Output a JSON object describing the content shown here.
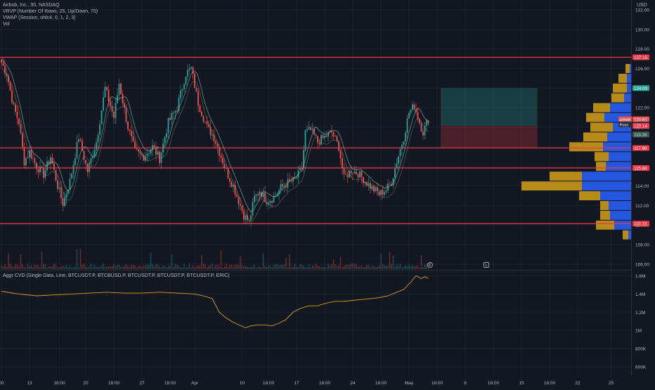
{
  "header": {
    "title": "Airbnb, Inc., 30, NASDAQ",
    "indicators": [
      "VRVP (Number Of Rows, 25, Up/Down, 70)",
      "VWAP (Session, ohlc4, 0, 1, 2, 3)",
      "Vol"
    ],
    "currency": "USD"
  },
  "colors": {
    "background": "#131722",
    "up": "#26a69a",
    "down": "#ef5350",
    "hline": "#f23645",
    "profile_up": "#2962ff",
    "profile_down": "#d4a017",
    "cvd": "#d4a017",
    "vwap": "#7ecbb5"
  },
  "chart_data": [
    {
      "type": "candlestick",
      "title": "Airbnb, Inc., 30, NASDAQ",
      "ylim": [
        105.5,
        133
      ],
      "yticks": [
        106,
        108,
        110,
        112,
        114,
        116,
        118,
        120,
        122,
        124,
        126,
        128,
        130,
        132
      ],
      "xticks": [
        "00",
        "13",
        "18:00",
        "20",
        "18:00",
        "27",
        "18:00",
        "Apr",
        "10",
        "18:00",
        "17",
        "18:00",
        "24",
        "18:00",
        "May",
        "18:00",
        "8",
        "18:00",
        "15",
        "18:00",
        "22",
        "25"
      ],
      "xtick_positions": [
        0,
        16,
        33,
        48,
        64,
        80,
        96,
        110,
        137,
        152,
        168,
        184,
        200,
        216,
        232,
        248,
        264,
        280,
        296,
        312,
        328,
        347
      ],
      "price_path_anchors": [
        [
          0,
          126.6
        ],
        [
          3,
          125.5
        ],
        [
          7,
          122.0
        ],
        [
          10,
          120.5
        ],
        [
          13,
          116.5
        ],
        [
          16,
          117.5
        ],
        [
          20,
          116.0
        ],
        [
          24,
          115.2
        ],
        [
          28,
          117.0
        ],
        [
          32,
          114.0
        ],
        [
          35,
          112.2
        ],
        [
          39,
          114.5
        ],
        [
          44,
          119.0
        ],
        [
          49,
          115.5
        ],
        [
          54,
          118.5
        ],
        [
          59,
          124.0
        ],
        [
          64,
          121.0
        ],
        [
          67,
          124.5
        ],
        [
          72,
          120.0
        ],
        [
          76,
          117.5
        ],
        [
          81,
          117.0
        ],
        [
          86,
          118.0
        ],
        [
          90,
          116.8
        ],
        [
          95,
          120.5
        ],
        [
          100,
          122.0
        ],
        [
          105,
          125.5
        ],
        [
          108,
          126.0
        ],
        [
          112,
          122.5
        ],
        [
          117,
          120.0
        ],
        [
          121,
          119.0
        ],
        [
          125,
          117.0
        ],
        [
          128,
          115.5
        ],
        [
          132,
          114.0
        ],
        [
          135,
          112.5
        ],
        [
          138,
          111.0
        ],
        [
          141,
          110.3
        ],
        [
          144,
          112.8
        ],
        [
          147,
          113.5
        ],
        [
          151,
          112.5
        ],
        [
          155,
          112.8
        ],
        [
          159,
          113.8
        ],
        [
          163,
          114.3
        ],
        [
          167,
          114.6
        ],
        [
          171,
          115.8
        ],
        [
          173,
          119.5
        ],
        [
          176,
          119.7
        ],
        [
          180,
          118.5
        ],
        [
          184,
          119.0
        ],
        [
          188,
          119.5
        ],
        [
          192,
          118.0
        ],
        [
          195,
          114.8
        ],
        [
          199,
          115.6
        ],
        [
          203,
          115.3
        ],
        [
          207,
          114.5
        ],
        [
          211,
          113.8
        ],
        [
          215,
          113.2
        ],
        [
          219,
          113.6
        ],
        [
          222,
          114.4
        ],
        [
          225,
          116.5
        ],
        [
          229,
          119.0
        ],
        [
          232,
          121.5
        ],
        [
          235,
          122.2
        ],
        [
          238,
          120.5
        ],
        [
          240,
          119.5
        ],
        [
          243,
          120.8
        ]
      ],
      "horizontal_lines": [
        127.15,
        117.88,
        115.84,
        110.15
      ],
      "price_labels": [
        {
          "value": 127.15,
          "text": "127.15",
          "kind": "line"
        },
        {
          "value": 124.0,
          "text": "124.00",
          "kind": "target"
        },
        {
          "value": 120.81,
          "text": "120.81",
          "kind": "last",
          "tag": "ABNB"
        },
        {
          "value": 120.3,
          "text": "120.30",
          "kind": "vwap",
          "tag": "Posc"
        },
        {
          "value": 120.14,
          "text": "120.14",
          "kind": "line"
        },
        {
          "value": 119.26,
          "text": "119.26",
          "kind": "vwap2"
        },
        {
          "value": 117.88,
          "text": "117.88",
          "kind": "line"
        },
        {
          "value": 115.84,
          "text": "115.84",
          "kind": "line"
        },
        {
          "value": 110.15,
          "text": "110.15",
          "kind": "line"
        }
      ],
      "position_tool": {
        "entry": 120.14,
        "target": 124.0,
        "stop": 117.88
      },
      "volume_profile": {
        "row_height": 1.0,
        "rows": [
          {
            "price": 109.0,
            "up": 0.2,
            "down": 0.4
          },
          {
            "price": 110.0,
            "up": 1.2,
            "down": 1.3
          },
          {
            "price": 111.0,
            "up": 1.5,
            "down": 0.7
          },
          {
            "price": 112.0,
            "up": 1.6,
            "down": 0.6
          },
          {
            "price": 113.0,
            "up": 2.2,
            "down": 1.5
          },
          {
            "price": 114.0,
            "up": 3.5,
            "down": 4.3
          },
          {
            "price": 115.0,
            "up": 3.5,
            "down": 2.3
          },
          {
            "price": 116.0,
            "up": 1.8,
            "down": 0.7
          },
          {
            "price": 117.0,
            "up": 1.6,
            "down": 1.0
          },
          {
            "price": 118.0,
            "up": 2.0,
            "down": 2.4
          },
          {
            "price": 119.0,
            "up": 1.7,
            "down": 1.7
          },
          {
            "price": 120.0,
            "up": 1.3,
            "down": 1.6
          },
          {
            "price": 121.0,
            "up": 1.9,
            "down": 1.3
          },
          {
            "price": 122.0,
            "up": 1.5,
            "down": 1.2
          },
          {
            "price": 123.0,
            "up": 0.5,
            "down": 0.9
          },
          {
            "price": 124.0,
            "up": 0.3,
            "down": 1.0
          },
          {
            "price": 125.0,
            "up": 0.3,
            "down": 0.6
          },
          {
            "price": 126.0,
            "up": 0.1,
            "down": 0.3
          }
        ]
      }
    },
    {
      "type": "line",
      "title": "Aggr CVD (Single Data, Line, BTCUSDT.P, BTCBUSD.P, BTCUSDT.P, BTCUSDT.P, BTCUSDT.P, ERIC)",
      "ylim": [
        0.5,
        1.65
      ],
      "yticks": [
        0.6,
        0.8,
        1.0,
        1.2,
        1.4,
        1.6
      ],
      "ytick_labels": [
        "600K",
        "800K",
        "1M",
        "1.2M",
        "1.4M",
        "1.6M"
      ],
      "series": [
        {
          "values": [
            [
              0,
              1.43
            ],
            [
              10,
              1.4
            ],
            [
              20,
              1.38
            ],
            [
              30,
              1.39
            ],
            [
              40,
              1.4
            ],
            [
              50,
              1.41
            ],
            [
              60,
              1.42
            ],
            [
              70,
              1.41
            ],
            [
              80,
              1.41
            ],
            [
              90,
              1.42
            ],
            [
              100,
              1.41
            ],
            [
              110,
              1.4
            ],
            [
              115,
              1.38
            ],
            [
              120,
              1.35
            ],
            [
              124,
              1.2
            ],
            [
              127,
              1.15
            ],
            [
              131,
              1.1
            ],
            [
              135,
              1.06
            ],
            [
              139,
              1.03
            ],
            [
              142,
              1.05
            ],
            [
              146,
              1.06
            ],
            [
              150,
              1.06
            ],
            [
              154,
              1.05
            ],
            [
              158,
              1.08
            ],
            [
              162,
              1.12
            ],
            [
              166,
              1.2
            ],
            [
              170,
              1.24
            ],
            [
              175,
              1.27
            ],
            [
              180,
              1.27
            ],
            [
              185,
              1.3
            ],
            [
              190,
              1.32
            ],
            [
              195,
              1.32
            ],
            [
              200,
              1.33
            ],
            [
              205,
              1.34
            ],
            [
              210,
              1.35
            ],
            [
              215,
              1.36
            ],
            [
              220,
              1.38
            ],
            [
              225,
              1.42
            ],
            [
              229,
              1.45
            ],
            [
              233,
              1.53
            ],
            [
              236,
              1.6
            ],
            [
              239,
              1.57
            ],
            [
              241,
              1.59
            ],
            [
              243,
              1.57
            ]
          ]
        }
      ]
    }
  ],
  "markers": {
    "flag1": "F",
    "flag2": "L"
  }
}
